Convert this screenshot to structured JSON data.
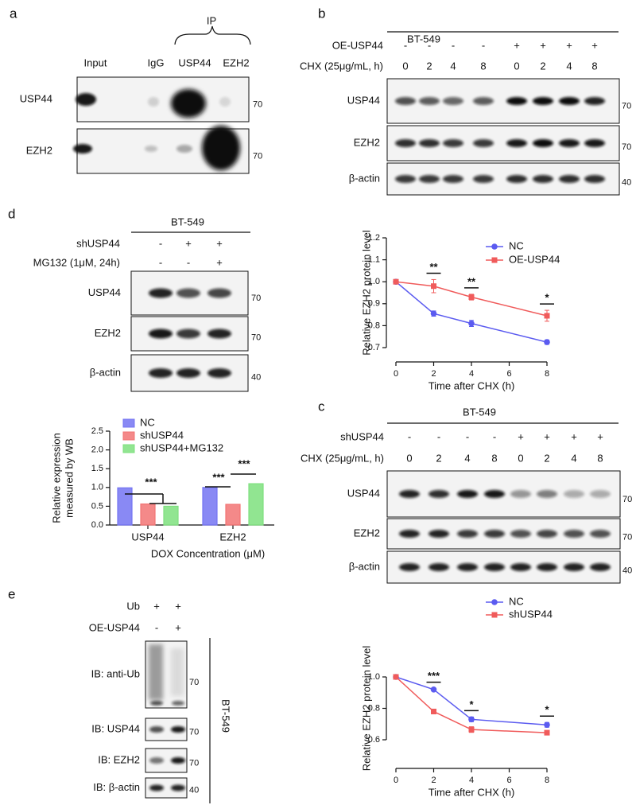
{
  "panels": {
    "a": {
      "label": "a",
      "ip": "IP",
      "lanes": [
        "Input",
        "IgG",
        "USP44",
        "EZH2"
      ],
      "rows": [
        "USP44",
        "EZH2"
      ],
      "mw": [
        70,
        70
      ]
    },
    "b": {
      "label": "b",
      "cell_line": "BT-549",
      "conditions": [
        {
          "name": "OE-USP44",
          "lanes": [
            "-",
            "-",
            "-",
            "-",
            "+",
            "+",
            "+",
            "+"
          ]
        },
        {
          "name": "CHX (25μg/mL, h)",
          "lanes": [
            0,
            2,
            4,
            8,
            0,
            2,
            4,
            8
          ]
        }
      ],
      "rows": [
        "USP44",
        "EZH2",
        "β-actin"
      ],
      "mw": [
        70,
        70,
        40
      ]
    },
    "d": {
      "label": "d",
      "cell_line": "BT-549",
      "conditions": [
        {
          "name": "shUSP44",
          "lanes": [
            "-",
            "+",
            "+"
          ]
        },
        {
          "name": "MG132 (1μM, 24h)",
          "lanes": [
            "-",
            "-",
            "+"
          ]
        }
      ],
      "rows": [
        "USP44",
        "EZH2",
        "β-actin"
      ],
      "mw": [
        70,
        70,
        40
      ]
    },
    "c": {
      "label": "c",
      "cell_line": "BT-549",
      "conditions": [
        {
          "name": "shUSP44",
          "lanes": [
            "-",
            "-",
            "-",
            "-",
            "+",
            "+",
            "+",
            "+"
          ]
        },
        {
          "name": "CHX (25μg/mL, h)",
          "lanes": [
            0,
            2,
            4,
            8,
            0,
            2,
            4,
            8
          ]
        }
      ],
      "rows": [
        "USP44",
        "EZH2",
        "β-actin"
      ],
      "mw": [
        70,
        70,
        40
      ]
    },
    "e": {
      "label": "e",
      "cell_line": "BT-549",
      "conditions": [
        {
          "name": "Ub",
          "lanes": [
            "+",
            "+"
          ]
        },
        {
          "name": "OE-USP44",
          "lanes": [
            "-",
            "+"
          ]
        }
      ],
      "rows": [
        "IB: anti-Ub",
        "IB: USP44",
        "IB: EZH2",
        "IB: β-actin"
      ],
      "mw": [
        70,
        70,
        70,
        40
      ]
    }
  },
  "chart_data": [
    {
      "type": "line",
      "xlabel": "Time after CHX (h)",
      "ylabel": "Relative EZH2 protein level",
      "x": [
        0,
        2,
        4,
        8
      ],
      "xlim": [
        0,
        8
      ],
      "xticks": [
        0,
        2,
        4,
        6,
        8
      ],
      "ylim": [
        0.7,
        1.2
      ],
      "yticks": [
        0.7,
        0.8,
        0.9,
        {
          "value": 1,
          "label": "1.0"
        },
        1.1,
        1.2
      ],
      "series": [
        {
          "name": "NC",
          "color": "#5b5bf0",
          "marker": "circle",
          "values": [
            1,
            0.855,
            0.81,
            0.725
          ],
          "errors": [
            0.005,
            0.012,
            0.014,
            0.01
          ]
        },
        {
          "name": "OE-USP44",
          "color": "#f05b5b",
          "marker": "square",
          "values": [
            1,
            0.98,
            0.93,
            0.845
          ],
          "errors": [
            0.005,
            0.03,
            0.013,
            0.025
          ]
        }
      ],
      "annotations": [
        {
          "label": "**",
          "x": 2
        },
        {
          "label": "**",
          "x": 4
        },
        {
          "label": "*",
          "x": 8
        }
      ]
    },
    {
      "type": "bar",
      "xlabel": "DOX Concentration (μM)",
      "ylabel": [
        "Relative expression",
        "measured by WB"
      ],
      "categories": [
        "USP44",
        "EZH2"
      ],
      "ylim": [
        0,
        2.5
      ],
      "yticks": [
        {
          "value": 0,
          "label": "0.0"
        },
        0.5,
        {
          "value": 1,
          "label": "1.0"
        },
        1.5,
        {
          "value": 2,
          "label": "2.0"
        },
        2.5
      ],
      "series": [
        {
          "name": "NC",
          "color": "#7474f2",
          "values": [
            0.99,
            1.0
          ]
        },
        {
          "name": "shUSP44",
          "color": "#f27474",
          "values": [
            0.56,
            0.55
          ]
        },
        {
          "name": "shUSP44+MG132",
          "color": "#7ee07e",
          "values": [
            0.5,
            1.1
          ]
        }
      ],
      "annotations": [
        {
          "label": "***"
        },
        {
          "label": "***"
        },
        {
          "label": "***"
        }
      ]
    },
    {
      "type": "line",
      "xlabel": "Time after CHX (h)",
      "ylabel": "Relative EZH2 protein level",
      "x": [
        0,
        2,
        4,
        8
      ],
      "xlim": [
        0,
        8
      ],
      "xticks": [
        0,
        2,
        4,
        6,
        8
      ],
      "ylim": [
        0.6,
        1.0
      ],
      "yticks": [
        0.6,
        0.8,
        {
          "value": 1,
          "label": "1.0"
        }
      ],
      "series": [
        {
          "name": "NC",
          "color": "#5b5bf0",
          "marker": "circle",
          "values": [
            1,
            0.92,
            0.73,
            0.695
          ],
          "errors": [
            0.005,
            0.006,
            0.015,
            0.015
          ]
        },
        {
          "name": "shUSP44",
          "color": "#f05b5b",
          "marker": "square",
          "values": [
            1,
            0.78,
            0.665,
            0.645
          ],
          "errors": [
            0.005,
            0.015,
            0.018,
            0.012
          ]
        }
      ],
      "annotations": [
        {
          "label": "***",
          "x": 2
        },
        {
          "label": "*",
          "x": 4
        },
        {
          "label": "*",
          "x": 8
        }
      ]
    }
  ]
}
